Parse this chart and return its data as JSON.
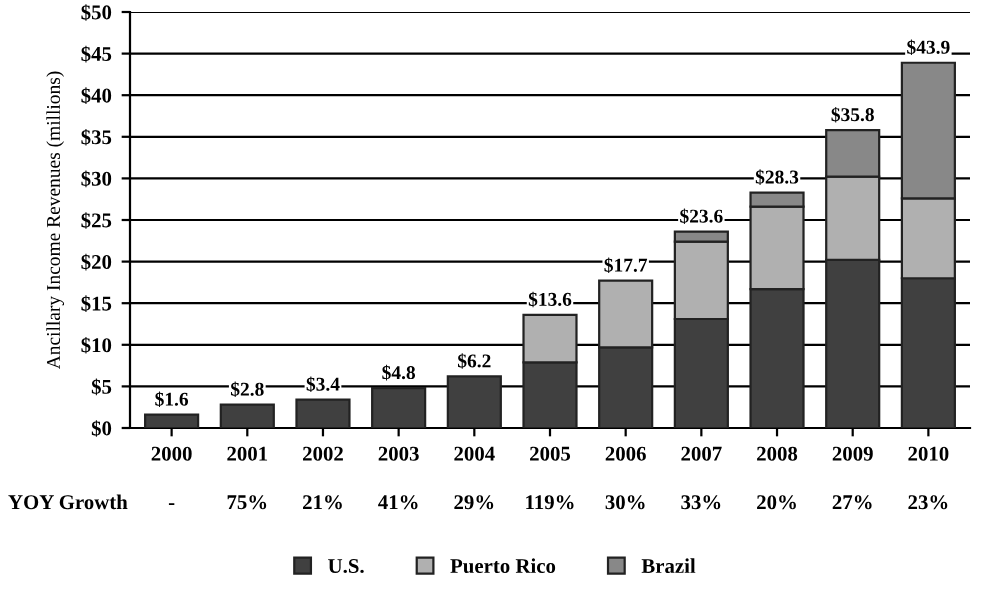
{
  "chart_data": {
    "type": "bar",
    "stacked": true,
    "ylabel": "Ancillary Income Revenues (millions)",
    "categories": [
      "2000",
      "2001",
      "2002",
      "2003",
      "2004",
      "2005",
      "2006",
      "2007",
      "2008",
      "2009",
      "2010"
    ],
    "series": [
      {
        "name": "U.S.",
        "color": "#404040",
        "values": [
          1.6,
          2.8,
          3.4,
          4.8,
          6.2,
          7.9,
          9.7,
          13.1,
          16.7,
          20.2,
          18.0
        ]
      },
      {
        "name": "Puerto Rico",
        "color": "#b0b0b0",
        "values": [
          null,
          null,
          null,
          null,
          null,
          5.7,
          8.0,
          9.3,
          9.9,
          10.0,
          9.6
        ]
      },
      {
        "name": "Brazil",
        "color": "#888888",
        "values": [
          null,
          null,
          null,
          null,
          null,
          null,
          null,
          1.2,
          1.7,
          5.6,
          16.3
        ]
      }
    ],
    "totals": [
      "$1.6",
      "$2.8",
      "$3.4",
      "$4.8",
      "$6.2",
      "$13.6",
      "$17.7",
      "$23.6",
      "$28.3",
      "$35.8",
      "$43.9"
    ],
    "annotations": [
      "YOY Growth",
      "-",
      "75%",
      "21%",
      "41%",
      "29%",
      "119%",
      "30%",
      "33%",
      "20%",
      "27%",
      "23%"
    ],
    "ylim": [
      0,
      50
    ],
    "yticks": [
      {
        "value": 0,
        "label": "$0"
      },
      {
        "value": 5,
        "label": "$5"
      },
      {
        "value": 10,
        "label": "$10"
      },
      {
        "value": 15,
        "label": "$15"
      },
      {
        "value": 20,
        "label": "$20"
      },
      {
        "value": 25,
        "label": "$25"
      },
      {
        "value": 30,
        "label": "$30"
      },
      {
        "value": 35,
        "label": "$35"
      },
      {
        "value": 40,
        "label": "$40"
      },
      {
        "value": 45,
        "label": "$45"
      },
      {
        "value": 50,
        "label": "$50"
      }
    ],
    "grid": "y",
    "legend": "bottom"
  }
}
